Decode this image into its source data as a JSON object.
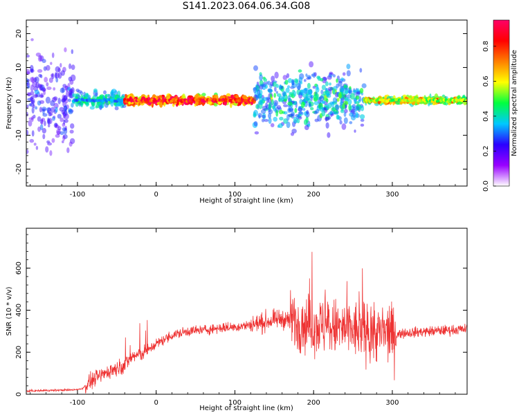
{
  "title": "S141.2023.064.06.34.G08",
  "chart_data": [
    {
      "type": "heatmap",
      "name": "spectrogram",
      "xlabel": "Height of straight line (km)",
      "ylabel": "Frequency (Hz)",
      "xlim": [
        -165,
        395
      ],
      "ylim": [
        -25,
        24
      ],
      "x_ticks": [
        -100,
        0,
        100,
        200,
        300
      ],
      "y_ticks": [
        -20,
        -10,
        0,
        10,
        20
      ],
      "grid": false,
      "colorbar": {
        "label": "Normalized spectral amplitude",
        "range": [
          0.0,
          0.95
        ],
        "ticks": [
          0.0,
          0.2,
          0.4,
          0.6,
          0.8
        ],
        "colors": [
          "#ffffff",
          "#9900ff",
          "#2b00ff",
          "#00c8ff",
          "#00ff40",
          "#ffff00",
          "#ff8000",
          "#ff0000",
          "#ff0066"
        ]
      },
      "ridge_frequency_hz": 0.3,
      "segments": [
        {
          "x": [
            -165,
            -105
          ],
          "spread_hz": 24,
          "amplitude": 0.15
        },
        {
          "x": [
            -105,
            -40
          ],
          "spread_hz": 4,
          "amplitude": 0.35
        },
        {
          "x": [
            -40,
            125
          ],
          "spread_hz": 2,
          "amplitude": 0.9
        },
        {
          "x": [
            125,
            265
          ],
          "spread_hz": 14,
          "amplitude": 0.3
        },
        {
          "x": [
            265,
            395
          ],
          "spread_hz": 1.5,
          "amplitude": 0.6
        }
      ]
    },
    {
      "type": "line",
      "name": "snr",
      "xlabel": "Height of straight line (km)",
      "ylabel": "SNR (10 * v/v)",
      "xlim": [
        -165,
        395
      ],
      "ylim": [
        0,
        790
      ],
      "x_ticks": [
        -100,
        0,
        100,
        200,
        300
      ],
      "y_ticks": [
        0,
        200,
        400,
        600
      ],
      "grid": false,
      "color": "#ee3333",
      "x": [
        -165,
        -140,
        -110,
        -95,
        -80,
        -60,
        -40,
        -30,
        -20,
        -10,
        0,
        20,
        40,
        60,
        80,
        100,
        120,
        140,
        160,
        180,
        200,
        220,
        240,
        260,
        280,
        300,
        305,
        310,
        330,
        350,
        370,
        395
      ],
      "y": [
        15,
        18,
        20,
        25,
        70,
        110,
        140,
        180,
        190,
        210,
        240,
        280,
        300,
        305,
        315,
        320,
        330,
        345,
        360,
        340,
        330,
        320,
        310,
        300,
        290,
        290,
        280,
        290,
        295,
        300,
        305,
        310
      ]
    }
  ]
}
